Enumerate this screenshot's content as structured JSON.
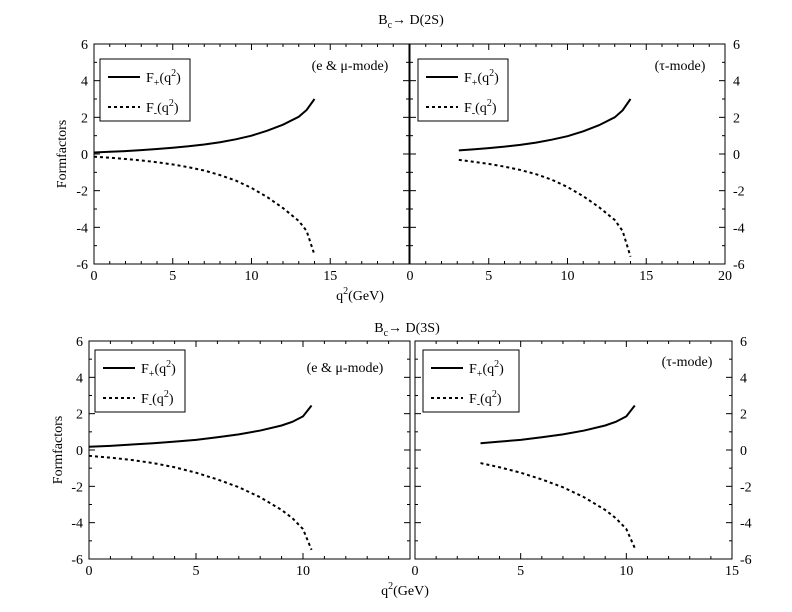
{
  "chart_data": [
    {
      "type": "line",
      "panel": "top-left",
      "title": "B_c→ D(2S)",
      "mode": "(e & μ-mode)",
      "xlabel": "q²(GeV)",
      "ylabel": "Formfactors",
      "xlim": [
        0,
        20
      ],
      "ylim": [
        -6,
        6
      ],
      "xticks": [
        0,
        5,
        10,
        15
      ],
      "yticks": [
        -6,
        -4,
        -2,
        0,
        2,
        4,
        6
      ],
      "legend": "top-left",
      "series": [
        {
          "name": "F₊(q²)",
          "style": "solid",
          "x": [
            0,
            1,
            2,
            3,
            4,
            5,
            6,
            7,
            8,
            9,
            10,
            11,
            12,
            13,
            13.5,
            14
          ],
          "y": [
            0.08,
            0.12,
            0.16,
            0.21,
            0.27,
            0.34,
            0.42,
            0.52,
            0.64,
            0.8,
            1.0,
            1.27,
            1.6,
            2.03,
            2.4,
            3.0
          ]
        },
        {
          "name": "F₋(q²)",
          "style": "dashed",
          "x": [
            0,
            1,
            2,
            3,
            4,
            5,
            6,
            7,
            8,
            9,
            10,
            11,
            12,
            13,
            13.5,
            14
          ],
          "y": [
            -0.15,
            -0.2,
            -0.27,
            -0.35,
            -0.45,
            -0.57,
            -0.72,
            -0.9,
            -1.15,
            -1.45,
            -1.85,
            -2.35,
            -2.95,
            -3.65,
            -4.2,
            -5.5
          ]
        }
      ]
    },
    {
      "type": "line",
      "panel": "top-right",
      "mode": "(τ-mode)",
      "xlabel": "",
      "ylabel": "",
      "xlim": [
        0,
        20
      ],
      "ylim": [
        -6,
        6
      ],
      "xticks": [
        0,
        5,
        10,
        15,
        20
      ],
      "yticks": [
        -6,
        -4,
        -2,
        0,
        2,
        4,
        6
      ],
      "legend": "top-left",
      "series": [
        {
          "name": "F₊(q²)",
          "style": "solid",
          "x": [
            3.1,
            4,
            5,
            6,
            7,
            8,
            9,
            10,
            11,
            12,
            13,
            13.5,
            14
          ],
          "y": [
            0.2,
            0.25,
            0.32,
            0.4,
            0.5,
            0.62,
            0.78,
            0.97,
            1.24,
            1.57,
            2.0,
            2.38,
            3.0
          ]
        },
        {
          "name": "F₋(q²)",
          "style": "dashed",
          "x": [
            3.1,
            4,
            5,
            6,
            7,
            8,
            9,
            10,
            11,
            12,
            13,
            13.5,
            14
          ],
          "y": [
            -0.32,
            -0.42,
            -0.54,
            -0.69,
            -0.87,
            -1.1,
            -1.4,
            -1.8,
            -2.3,
            -2.9,
            -3.6,
            -4.2,
            -5.6
          ]
        }
      ]
    },
    {
      "type": "line",
      "panel": "bottom-left",
      "title": "B_c→ D(3S)",
      "mode": "(e & μ-mode)",
      "xlabel": "q²(GeV)",
      "ylabel": "Formfactors",
      "xlim": [
        0,
        15
      ],
      "ylim": [
        -6,
        6
      ],
      "xticks": [
        0,
        5,
        10
      ],
      "yticks": [
        -6,
        -4,
        -2,
        0,
        2,
        4,
        6
      ],
      "legend": "top-left",
      "series": [
        {
          "name": "F₊(q²)",
          "style": "solid",
          "x": [
            0,
            1,
            2,
            3,
            4,
            5,
            6,
            7,
            8,
            9,
            9.5,
            10,
            10.4
          ],
          "y": [
            0.18,
            0.23,
            0.3,
            0.37,
            0.46,
            0.56,
            0.7,
            0.86,
            1.07,
            1.35,
            1.55,
            1.85,
            2.45
          ]
        },
        {
          "name": "F₋(q²)",
          "style": "dashed",
          "x": [
            0,
            1,
            2,
            3,
            4,
            5,
            6,
            7,
            8,
            9,
            9.5,
            10,
            10.4
          ],
          "y": [
            -0.32,
            -0.42,
            -0.55,
            -0.72,
            -0.95,
            -1.25,
            -1.62,
            -2.05,
            -2.6,
            -3.3,
            -3.75,
            -4.35,
            -5.5
          ]
        }
      ]
    },
    {
      "type": "line",
      "panel": "bottom-right",
      "mode": "(τ-mode)",
      "xlabel": "",
      "ylabel": "",
      "xlim": [
        0,
        15
      ],
      "ylim": [
        -6,
        6
      ],
      "xticks": [
        0,
        5,
        10,
        15
      ],
      "yticks": [
        -6,
        -4,
        -2,
        0,
        2,
        4,
        6
      ],
      "legend": "top-left",
      "series": [
        {
          "name": "F₊(q²)",
          "style": "solid",
          "x": [
            3.1,
            4,
            5,
            6,
            7,
            8,
            9,
            9.5,
            10,
            10.4
          ],
          "y": [
            0.37,
            0.46,
            0.56,
            0.7,
            0.86,
            1.07,
            1.35,
            1.55,
            1.85,
            2.45
          ]
        },
        {
          "name": "F₋(q²)",
          "style": "dashed",
          "x": [
            3.1,
            4,
            5,
            6,
            7,
            8,
            9,
            9.5,
            10,
            10.4
          ],
          "y": [
            -0.72,
            -0.95,
            -1.25,
            -1.62,
            -2.05,
            -2.6,
            -3.3,
            -3.75,
            -4.35,
            -5.4
          ]
        }
      ]
    }
  ]
}
